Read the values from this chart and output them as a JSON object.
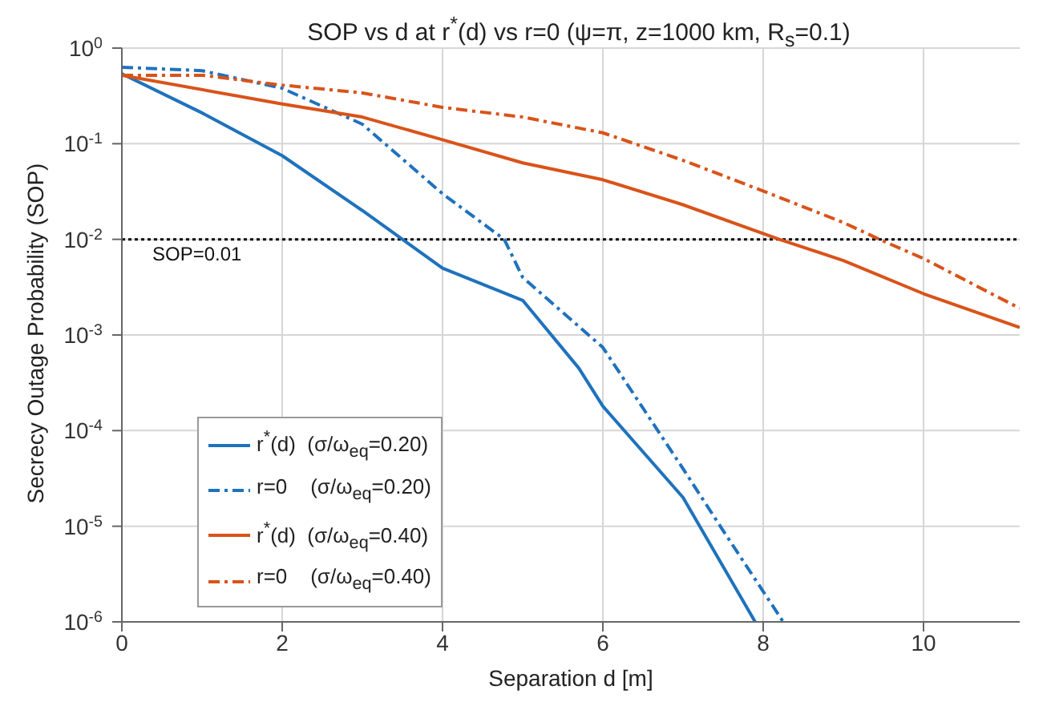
{
  "chart_data": {
    "type": "line",
    "title": "SOP vs d at r$^{*}$(d) vs r=0  (ψ=π, z=1000 km, R$_{s}$=0.1)",
    "xlabel": "Separation  d  [m]",
    "ylabel": "Secrecy Outage Probability (SOP)",
    "log": "y",
    "grid": true,
    "legend": "bottom left",
    "marker": "none",
    "xlim": [
      0,
      11.2
    ],
    "xticks": [
      0,
      2,
      4,
      6,
      8,
      10
    ],
    "ylim": [
      1e-06,
      1
    ],
    "yticks": [
      {
        "value": 1e-06,
        "label": "10$^{-6}$"
      },
      {
        "value": 1e-05,
        "label": "10$^{-5}$"
      },
      {
        "value": 0.0001,
        "label": "10$^{-4}$"
      },
      {
        "value": 0.001,
        "label": "10$^{-3}$"
      },
      {
        "value": 0.01,
        "label": "10$^{-2}$"
      },
      {
        "value": 0.1,
        "label": "10$^{-1}$"
      },
      {
        "value": 1,
        "label": "10$^{0}$"
      }
    ],
    "ref_lines": [
      {
        "axis": "y",
        "value": 0.01,
        "label": "SOP=0.01",
        "color": "#000000",
        "line_style": "dotted"
      }
    ],
    "series": [
      {
        "name": "r$^{*}$(d)  (σ/ω$_{eq}$=0.20)",
        "color": "#1f72bd",
        "line_style": "solid",
        "x": [
          0,
          1,
          2,
          3,
          3.5,
          4,
          5,
          5.7,
          6,
          7,
          7.9
        ],
        "values": [
          0.54,
          0.21,
          0.075,
          0.02,
          0.01,
          0.005,
          0.0023,
          0.00045,
          0.00018,
          2e-05,
          1e-06
        ]
      },
      {
        "name": "r=0    (σ/ω$_{eq}$=0.20)",
        "color": "#1f72bd",
        "line_style": "dashed",
        "x": [
          0,
          1,
          2,
          3,
          4,
          4.77,
          5,
          6,
          7,
          7.5,
          8.25
        ],
        "values": [
          0.63,
          0.58,
          0.38,
          0.16,
          0.03,
          0.01,
          0.004,
          0.00074,
          4e-05,
          9e-06,
          1e-06
        ]
      },
      {
        "name": "r$^{*}$(d)  (σ/ω$_{eq}$=0.40)",
        "color": "#d95319",
        "line_style": "solid",
        "x": [
          0,
          2,
          3,
          4,
          5,
          6,
          7,
          8.2,
          9,
          10,
          11.2
        ],
        "values": [
          0.52,
          0.26,
          0.19,
          0.11,
          0.063,
          0.042,
          0.023,
          0.01,
          0.006,
          0.0027,
          0.0012
        ]
      },
      {
        "name": "r=0    (σ/ω$_{eq}$=0.40)",
        "color": "#d95319",
        "line_style": "dashed",
        "x": [
          0,
          1,
          2,
          3,
          4,
          5,
          6,
          7,
          8,
          9,
          9.45,
          10,
          11.2
        ],
        "values": [
          0.52,
          0.52,
          0.41,
          0.34,
          0.24,
          0.19,
          0.13,
          0.067,
          0.032,
          0.015,
          0.01,
          0.0063,
          0.0019
        ]
      }
    ]
  }
}
